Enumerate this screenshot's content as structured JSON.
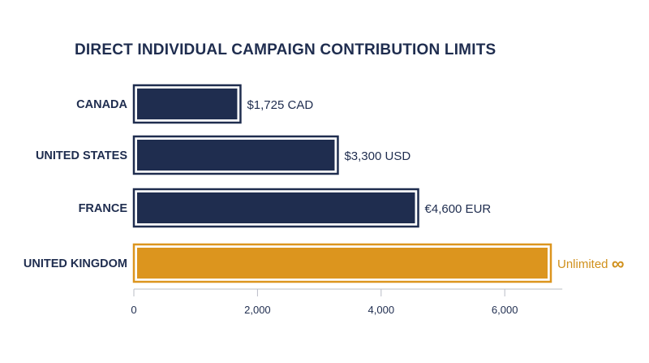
{
  "chart_data": {
    "type": "bar",
    "orientation": "horizontal",
    "title": "DIRECT INDIVIDUAL CAMPAIGN CONTRIBUTION LIMITS",
    "xlabel": "",
    "ylabel": "",
    "categories": [
      "CANADA",
      "UNITED STATES",
      "FRANCE",
      "UNITED KINGDOM"
    ],
    "values": [
      1725,
      3300,
      4600,
      null
    ],
    "value_labels": [
      "$1,725 CAD",
      "$3,300 USD",
      "€4,600 EUR",
      "Unlimited ∞"
    ],
    "bar_colors": [
      "#1f2d4f",
      "#1f2d4f",
      "#1f2d4f",
      "#dc951e"
    ],
    "label_colors": [
      "#1f2d4f",
      "#1f2d4f",
      "#1f2d4f",
      "#d0901c"
    ],
    "xlim": [
      0,
      6800
    ],
    "xticks": [
      0,
      2000,
      4000,
      6000
    ],
    "xtick_labels": [
      "0",
      "2,000",
      "4,000",
      "6,000"
    ],
    "grid": false,
    "legend": "none"
  }
}
